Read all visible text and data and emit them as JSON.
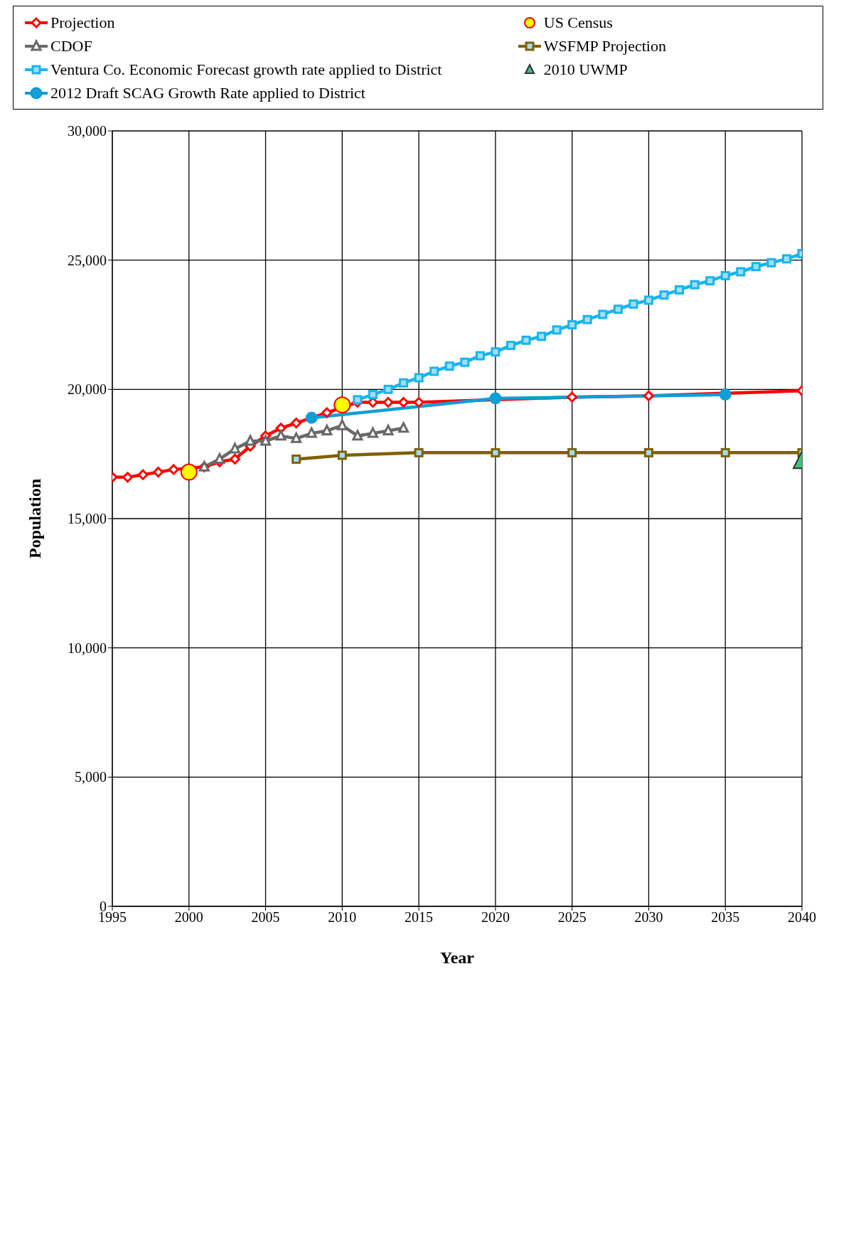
{
  "chart_data": {
    "type": "line",
    "xlabel": "Year",
    "ylabel": "Population",
    "xlim": [
      1995,
      2040
    ],
    "xticks": [
      1995,
      2000,
      2005,
      2010,
      2015,
      2020,
      2025,
      2030,
      2035,
      2040
    ],
    "ylim": [
      0,
      30000
    ],
    "yticks": [
      0,
      {
        "value": 5000,
        "label": "5,000"
      },
      {
        "value": 10000,
        "label": "10,000"
      },
      {
        "value": 15000,
        "label": "15,000"
      },
      {
        "value": 20000,
        "label": "20,000"
      },
      {
        "value": 25000,
        "label": "25,000"
      },
      {
        "value": 30000,
        "label": "30,000"
      }
    ],
    "grid": true,
    "legend": "top",
    "series": [
      {
        "name": "Projection",
        "color": "#ff0000",
        "marker": "diamond",
        "x": [
          1995,
          1996,
          1997,
          1998,
          1999,
          2000,
          2001,
          2002,
          2003,
          2004,
          2005,
          2006,
          2007,
          2008,
          2009,
          2010,
          2011,
          2012,
          2013,
          2014,
          2015,
          2025,
          2030,
          2035,
          2040
        ],
        "values": [
          16600,
          16600,
          16700,
          16800,
          16900,
          null,
          17000,
          17200,
          17300,
          17800,
          18200,
          18500,
          18700,
          null,
          19100,
          null,
          19500,
          19500,
          19500,
          19500,
          19500,
          19700,
          19750,
          null,
          19950
        ]
      },
      {
        "name": "CDOF",
        "color": "#696969",
        "marker": "triangle",
        "x": [
          2001,
          2002,
          2003,
          2004,
          2005,
          2006,
          2007,
          2008,
          2009,
          2010,
          2011,
          2012,
          2013,
          2014
        ],
        "values": [
          17000,
          17300,
          17700,
          18000,
          18000,
          18200,
          18100,
          18300,
          18400,
          18600,
          18200,
          18300,
          18400,
          18500
        ]
      },
      {
        "name": "Ventura Co. Economic Forecast growth rate applied to District",
        "color": "#1ab4ec",
        "marker": "square",
        "x": [
          2011,
          2012,
          2013,
          2014,
          2015,
          2016,
          2017,
          2018,
          2019,
          2020,
          2021,
          2022,
          2023,
          2024,
          2025,
          2026,
          2027,
          2028,
          2029,
          2030,
          2031,
          2032,
          2033,
          2034,
          2035,
          2036,
          2037,
          2038,
          2039,
          2040
        ],
        "values": [
          19600,
          19800,
          20000,
          20250,
          20450,
          20700,
          20900,
          21050,
          21300,
          21450,
          21700,
          21900,
          22050,
          22300,
          22500,
          22700,
          22900,
          23100,
          23300,
          23450,
          23650,
          23850,
          24050,
          24200,
          24400,
          24550,
          24750,
          24900,
          25050,
          25250
        ]
      },
      {
        "name": "2012 Draft SCAG Growth Rate applied to District",
        "color": "#0f9ed5",
        "marker": "circle",
        "x": [
          2008,
          2020,
          2035
        ],
        "values": [
          18900,
          19650,
          19800
        ]
      },
      {
        "name": "US Census",
        "type": "scatter",
        "color": "#ffff00",
        "marker": "circle",
        "x": [
          2000,
          2010
        ],
        "values": [
          16800,
          19400
        ]
      },
      {
        "name": "WSFMP Projection",
        "color": "#7f6000",
        "marker": "square",
        "x": [
          2007,
          2010,
          2015,
          2020,
          2025,
          2030,
          2035,
          2040
        ],
        "values": [
          17300,
          17450,
          17550,
          17550,
          17550,
          17550,
          17550,
          17550
        ]
      },
      {
        "name": "2010 UWMP",
        "type": "scatter",
        "color": "#40c080",
        "marker": "triangle",
        "x": [
          2040
        ],
        "values": [
          17250
        ]
      }
    ]
  }
}
